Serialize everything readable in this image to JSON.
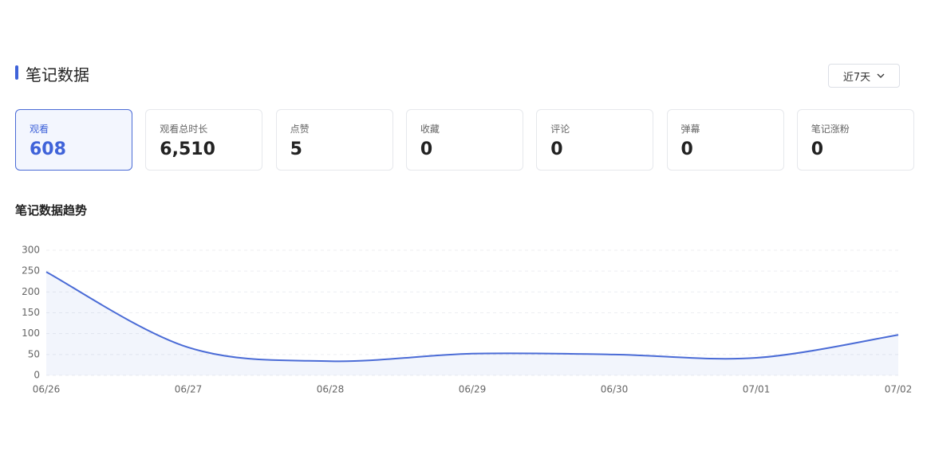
{
  "header": {
    "title": "笔记数据",
    "range": "近7天"
  },
  "cards": [
    {
      "label": "观看",
      "value": "608"
    },
    {
      "label": "观看总时长",
      "value": "6,510"
    },
    {
      "label": "点赞",
      "value": "5"
    },
    {
      "label": "收藏",
      "value": "0"
    },
    {
      "label": "评论",
      "value": "0"
    },
    {
      "label": "弹幕",
      "value": "0"
    },
    {
      "label": "笔记涨粉",
      "value": "0"
    }
  ],
  "chart_data": {
    "type": "line",
    "title": "笔记数据趋势",
    "categories": [
      "06/26",
      "06/27",
      "06/28",
      "06/29",
      "06/30",
      "07/01",
      "07/02"
    ],
    "values": [
      248,
      67,
      34,
      52,
      50,
      42,
      97
    ],
    "color": "#4a6bd6",
    "ylim": [
      0,
      300
    ],
    "yticks": [
      0,
      50,
      100,
      150,
      200,
      250,
      300
    ],
    "grid": true
  }
}
